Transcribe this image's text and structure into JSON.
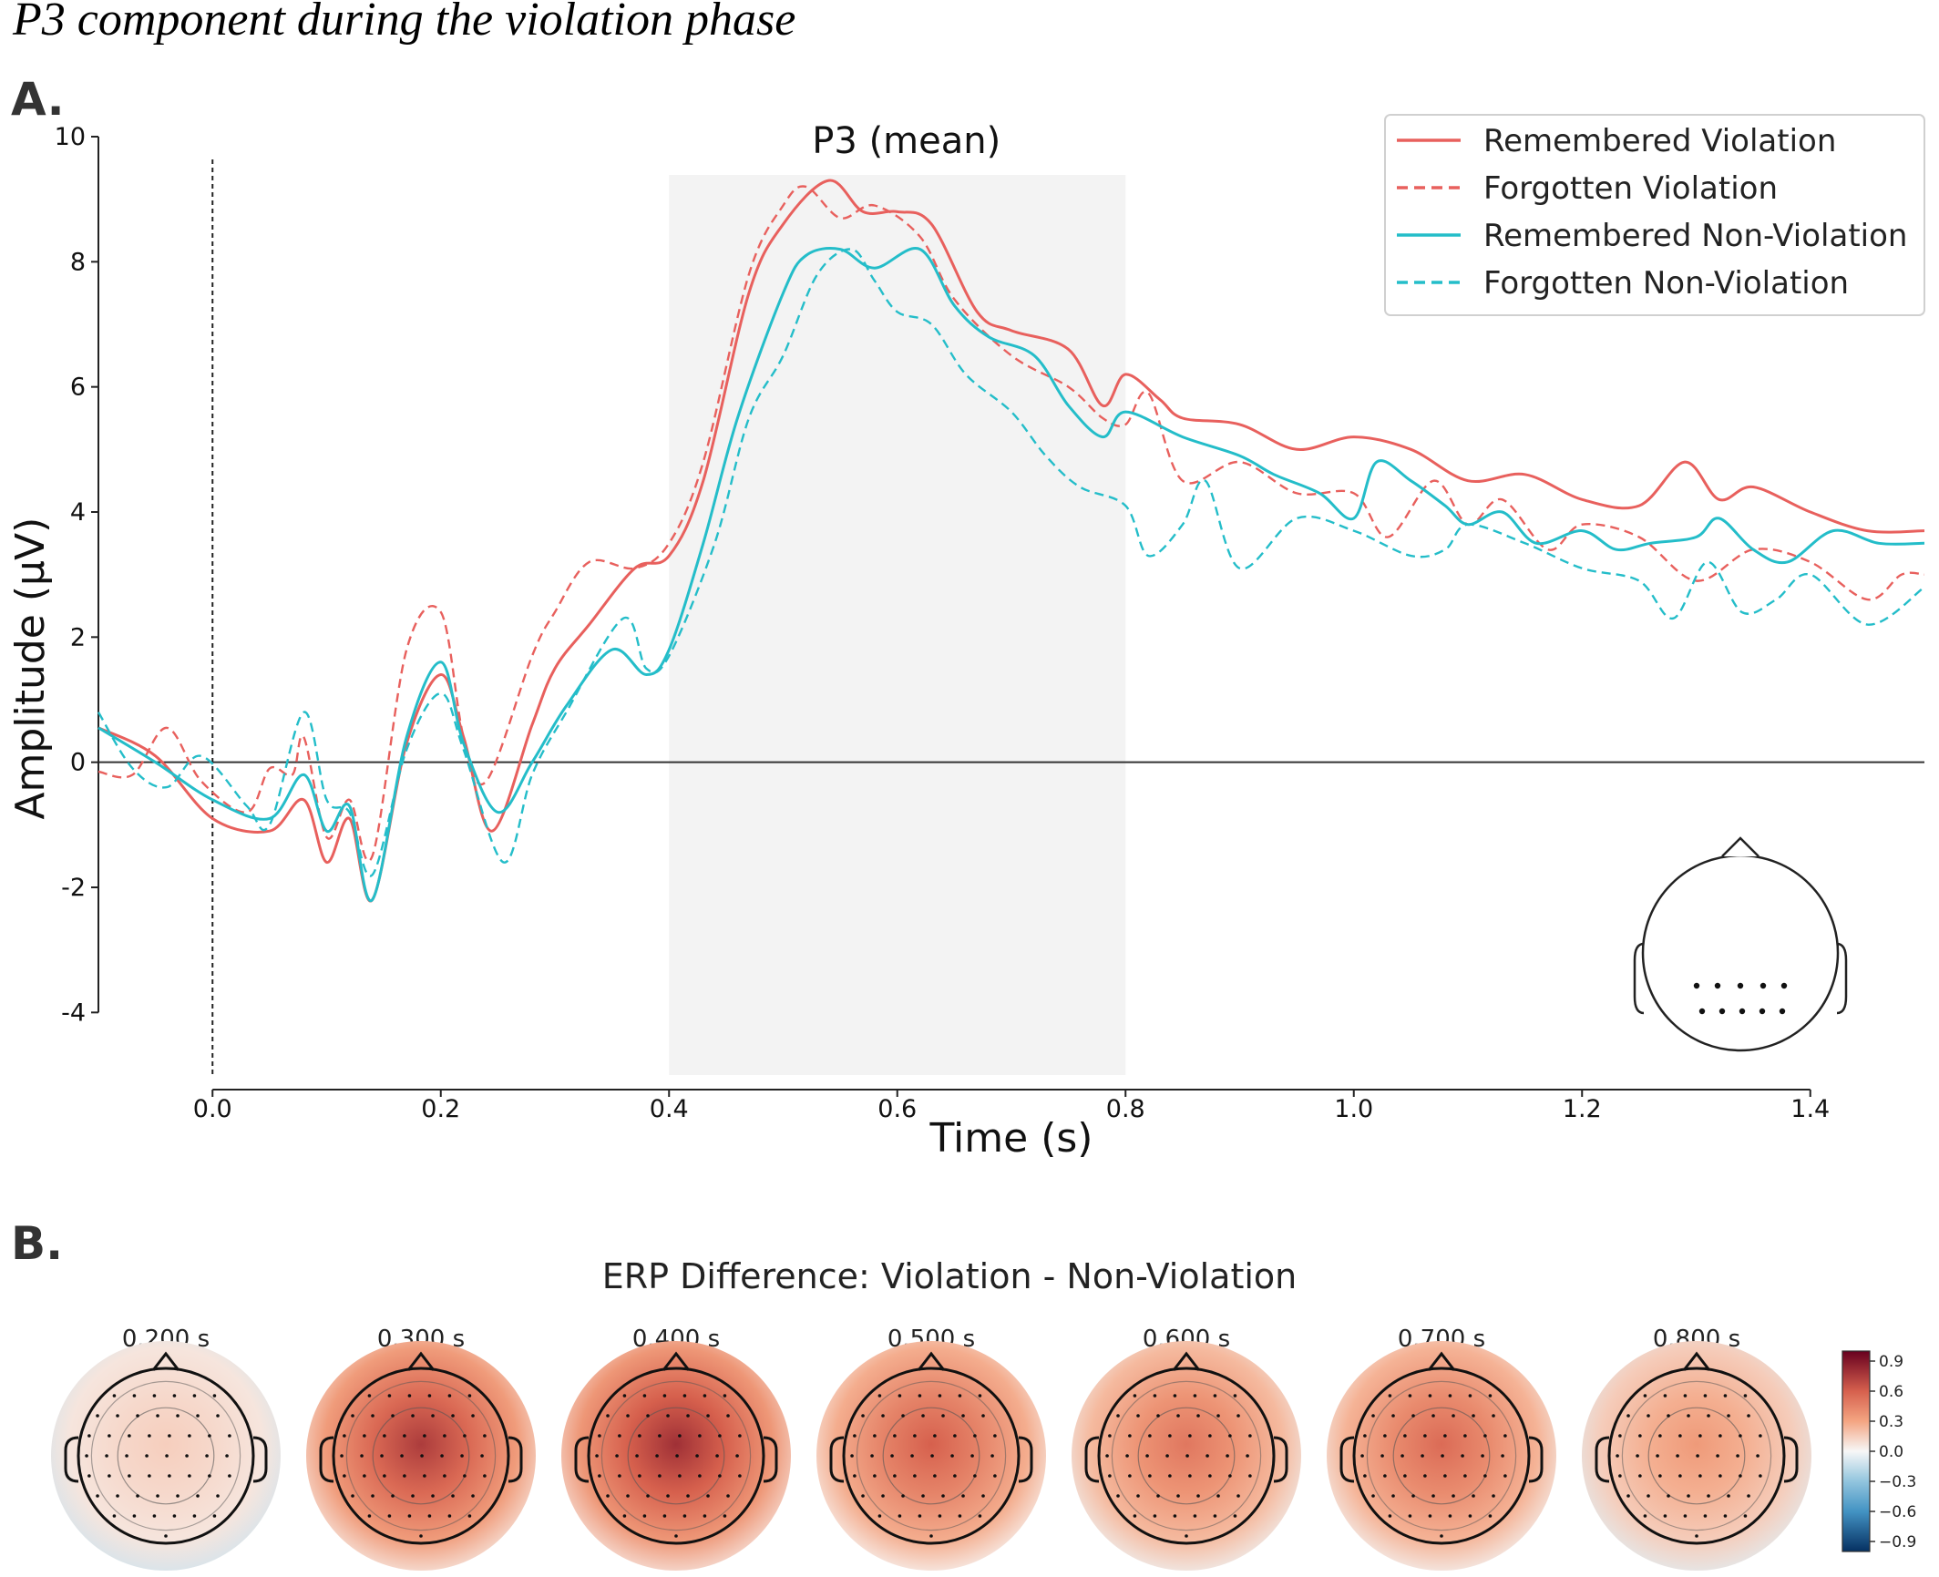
{
  "figure": {
    "caption": "P3 component during the violation phase",
    "panel_a_letter": "A.",
    "panel_b_letter": "B."
  },
  "chart_data": [
    {
      "type": "line",
      "title": "P3 (mean)",
      "xlabel": "Time (s)",
      "ylabel": "Amplitude (µV)",
      "xlim": [
        -0.1,
        1.5
      ],
      "ylim": [
        -5,
        10
      ],
      "xticks": [
        "0.0",
        "0.2",
        "0.4",
        "0.6",
        "0.8",
        "1.0",
        "1.2",
        "1.4"
      ],
      "xtick_values": [
        0.0,
        0.2,
        0.4,
        0.6,
        0.8,
        1.0,
        1.2,
        1.4
      ],
      "yticks": [
        "-4",
        "-2",
        "0",
        "2",
        "4",
        "6",
        "8",
        "10"
      ],
      "ytick_values": [
        -4,
        -2,
        0,
        2,
        4,
        6,
        8,
        10
      ],
      "shaded_window": [
        0.4,
        0.8
      ],
      "onset_line_x": 0.0,
      "zero_line_y": 0,
      "legend_position": "top-right",
      "grid": false,
      "series": [
        {
          "name": "Remembered Violation",
          "color": "#e8605d",
          "dash": false,
          "points": [
            [
              -0.1,
              0.55
            ],
            [
              -0.05,
              0.1
            ],
            [
              0.0,
              -0.9
            ],
            [
              0.05,
              -1.1
            ],
            [
              0.08,
              -0.6
            ],
            [
              0.1,
              -1.6
            ],
            [
              0.12,
              -0.9
            ],
            [
              0.14,
              -2.2
            ],
            [
              0.17,
              0.3
            ],
            [
              0.2,
              1.4
            ],
            [
              0.22,
              0.4
            ],
            [
              0.245,
              -1.1
            ],
            [
              0.28,
              0.6
            ],
            [
              0.3,
              1.5
            ],
            [
              0.33,
              2.2
            ],
            [
              0.37,
              3.1
            ],
            [
              0.4,
              3.3
            ],
            [
              0.43,
              4.5
            ],
            [
              0.47,
              7.5
            ],
            [
              0.5,
              8.6
            ],
            [
              0.54,
              9.3
            ],
            [
              0.57,
              8.8
            ],
            [
              0.6,
              8.8
            ],
            [
              0.63,
              8.6
            ],
            [
              0.67,
              7.2
            ],
            [
              0.7,
              6.9
            ],
            [
              0.75,
              6.6
            ],
            [
              0.78,
              5.7
            ],
            [
              0.8,
              6.2
            ],
            [
              0.83,
              5.8
            ],
            [
              0.85,
              5.5
            ],
            [
              0.9,
              5.4
            ],
            [
              0.95,
              5.0
            ],
            [
              1.0,
              5.2
            ],
            [
              1.05,
              5.0
            ],
            [
              1.1,
              4.5
            ],
            [
              1.15,
              4.6
            ],
            [
              1.2,
              4.2
            ],
            [
              1.25,
              4.1
            ],
            [
              1.29,
              4.8
            ],
            [
              1.32,
              4.2
            ],
            [
              1.35,
              4.4
            ],
            [
              1.4,
              4.0
            ],
            [
              1.45,
              3.7
            ],
            [
              1.5,
              3.7
            ]
          ]
        },
        {
          "name": "Forgotten Violation",
          "color": "#e8605d",
          "dash": true,
          "points": [
            [
              -0.1,
              -0.15
            ],
            [
              -0.07,
              -0.2
            ],
            [
              -0.04,
              0.55
            ],
            [
              -0.01,
              -0.3
            ],
            [
              0.03,
              -0.8
            ],
            [
              0.05,
              -0.1
            ],
            [
              0.07,
              -0.2
            ],
            [
              0.08,
              0.4
            ],
            [
              0.1,
              -1.2
            ],
            [
              0.12,
              -0.6
            ],
            [
              0.14,
              -1.5
            ],
            [
              0.17,
              1.8
            ],
            [
              0.2,
              2.4
            ],
            [
              0.22,
              0.4
            ],
            [
              0.24,
              -0.3
            ],
            [
              0.28,
              1.7
            ],
            [
              0.3,
              2.4
            ],
            [
              0.33,
              3.2
            ],
            [
              0.37,
              3.1
            ],
            [
              0.4,
              3.5
            ],
            [
              0.43,
              4.8
            ],
            [
              0.47,
              7.8
            ],
            [
              0.5,
              8.9
            ],
            [
              0.52,
              9.2
            ],
            [
              0.55,
              8.7
            ],
            [
              0.58,
              8.9
            ],
            [
              0.62,
              8.4
            ],
            [
              0.65,
              7.4
            ],
            [
              0.7,
              6.5
            ],
            [
              0.75,
              6.0
            ],
            [
              0.78,
              5.5
            ],
            [
              0.8,
              5.4
            ],
            [
              0.82,
              5.9
            ],
            [
              0.85,
              4.5
            ],
            [
              0.9,
              4.8
            ],
            [
              0.95,
              4.3
            ],
            [
              1.0,
              4.3
            ],
            [
              1.03,
              3.6
            ],
            [
              1.07,
              4.5
            ],
            [
              1.1,
              3.8
            ],
            [
              1.13,
              4.2
            ],
            [
              1.17,
              3.4
            ],
            [
              1.2,
              3.8
            ],
            [
              1.25,
              3.6
            ],
            [
              1.3,
              2.9
            ],
            [
              1.35,
              3.4
            ],
            [
              1.4,
              3.2
            ],
            [
              1.45,
              2.6
            ],
            [
              1.48,
              3.0
            ],
            [
              1.5,
              3.0
            ]
          ]
        },
        {
          "name": "Remembered Non-Violation",
          "color": "#24bdc9",
          "dash": false,
          "points": [
            [
              -0.1,
              0.55
            ],
            [
              -0.05,
              0.0
            ],
            [
              0.0,
              -0.6
            ],
            [
              0.05,
              -0.9
            ],
            [
              0.08,
              -0.2
            ],
            [
              0.1,
              -1.1
            ],
            [
              0.12,
              -0.7
            ],
            [
              0.14,
              -2.2
            ],
            [
              0.17,
              0.4
            ],
            [
              0.2,
              1.6
            ],
            [
              0.22,
              0.3
            ],
            [
              0.25,
              -0.8
            ],
            [
              0.28,
              0.0
            ],
            [
              0.31,
              0.9
            ],
            [
              0.35,
              1.8
            ],
            [
              0.38,
              1.4
            ],
            [
              0.4,
              1.8
            ],
            [
              0.43,
              3.5
            ],
            [
              0.46,
              5.5
            ],
            [
              0.5,
              7.5
            ],
            [
              0.52,
              8.1
            ],
            [
              0.55,
              8.2
            ],
            [
              0.58,
              7.9
            ],
            [
              0.62,
              8.2
            ],
            [
              0.65,
              7.3
            ],
            [
              0.68,
              6.8
            ],
            [
              0.72,
              6.5
            ],
            [
              0.75,
              5.7
            ],
            [
              0.78,
              5.2
            ],
            [
              0.8,
              5.6
            ],
            [
              0.85,
              5.2
            ],
            [
              0.9,
              4.9
            ],
            [
              0.93,
              4.6
            ],
            [
              0.97,
              4.3
            ],
            [
              1.0,
              3.9
            ],
            [
              1.02,
              4.8
            ],
            [
              1.05,
              4.5
            ],
            [
              1.08,
              4.1
            ],
            [
              1.1,
              3.8
            ],
            [
              1.13,
              4.0
            ],
            [
              1.16,
              3.5
            ],
            [
              1.2,
              3.7
            ],
            [
              1.23,
              3.4
            ],
            [
              1.26,
              3.5
            ],
            [
              1.3,
              3.6
            ],
            [
              1.32,
              3.9
            ],
            [
              1.35,
              3.4
            ],
            [
              1.38,
              3.2
            ],
            [
              1.42,
              3.7
            ],
            [
              1.46,
              3.5
            ],
            [
              1.5,
              3.5
            ]
          ]
        },
        {
          "name": "Forgotten Non-Violation",
          "color": "#24bdc9",
          "dash": true,
          "points": [
            [
              -0.1,
              0.8
            ],
            [
              -0.07,
              -0.1
            ],
            [
              -0.04,
              -0.4
            ],
            [
              -0.01,
              0.1
            ],
            [
              0.03,
              -0.7
            ],
            [
              0.05,
              -1.0
            ],
            [
              0.08,
              0.8
            ],
            [
              0.1,
              -0.6
            ],
            [
              0.12,
              -0.8
            ],
            [
              0.14,
              -1.8
            ],
            [
              0.17,
              0.2
            ],
            [
              0.2,
              1.1
            ],
            [
              0.22,
              0.2
            ],
            [
              0.255,
              -1.6
            ],
            [
              0.28,
              -0.2
            ],
            [
              0.31,
              0.8
            ],
            [
              0.36,
              2.3
            ],
            [
              0.38,
              1.5
            ],
            [
              0.4,
              1.7
            ],
            [
              0.44,
              3.5
            ],
            [
              0.47,
              5.5
            ],
            [
              0.5,
              6.5
            ],
            [
              0.53,
              7.8
            ],
            [
              0.56,
              8.2
            ],
            [
              0.58,
              7.7
            ],
            [
              0.6,
              7.2
            ],
            [
              0.63,
              7.0
            ],
            [
              0.66,
              6.2
            ],
            [
              0.7,
              5.6
            ],
            [
              0.73,
              4.9
            ],
            [
              0.76,
              4.4
            ],
            [
              0.8,
              4.1
            ],
            [
              0.82,
              3.3
            ],
            [
              0.85,
              3.8
            ],
            [
              0.87,
              4.5
            ],
            [
              0.9,
              3.1
            ],
            [
              0.95,
              3.9
            ],
            [
              1.0,
              3.7
            ],
            [
              1.05,
              3.3
            ],
            [
              1.08,
              3.4
            ],
            [
              1.1,
              3.8
            ],
            [
              1.15,
              3.5
            ],
            [
              1.2,
              3.1
            ],
            [
              1.25,
              2.9
            ],
            [
              1.28,
              2.3
            ],
            [
              1.31,
              3.2
            ],
            [
              1.34,
              2.4
            ],
            [
              1.37,
              2.6
            ],
            [
              1.4,
              3.0
            ],
            [
              1.45,
              2.2
            ],
            [
              1.5,
              2.8
            ]
          ]
        }
      ]
    },
    {
      "type": "heatmap",
      "title": "ERP Difference: Violation - Non-Violation",
      "colormap": "RdBu_r",
      "clim": [
        -1.0,
        1.0
      ],
      "colorbar_ticks": [
        "0.9",
        "0.6",
        "0.3",
        "0.0",
        "−0.3",
        "−0.6",
        "−0.9"
      ],
      "colorbar_values": [
        0.9,
        0.6,
        0.3,
        0.0,
        -0.3,
        -0.6,
        -0.9
      ],
      "maps": [
        {
          "label": "0.200 s",
          "level": 0.15
        },
        {
          "label": "0.300 s",
          "level": 0.75
        },
        {
          "label": "0.400 s",
          "level": 0.8
        },
        {
          "label": "0.500 s",
          "level": 0.6
        },
        {
          "label": "0.600 s",
          "level": 0.5
        },
        {
          "label": "0.700 s",
          "level": 0.55
        },
        {
          "label": "0.800 s",
          "level": 0.35
        }
      ]
    }
  ]
}
